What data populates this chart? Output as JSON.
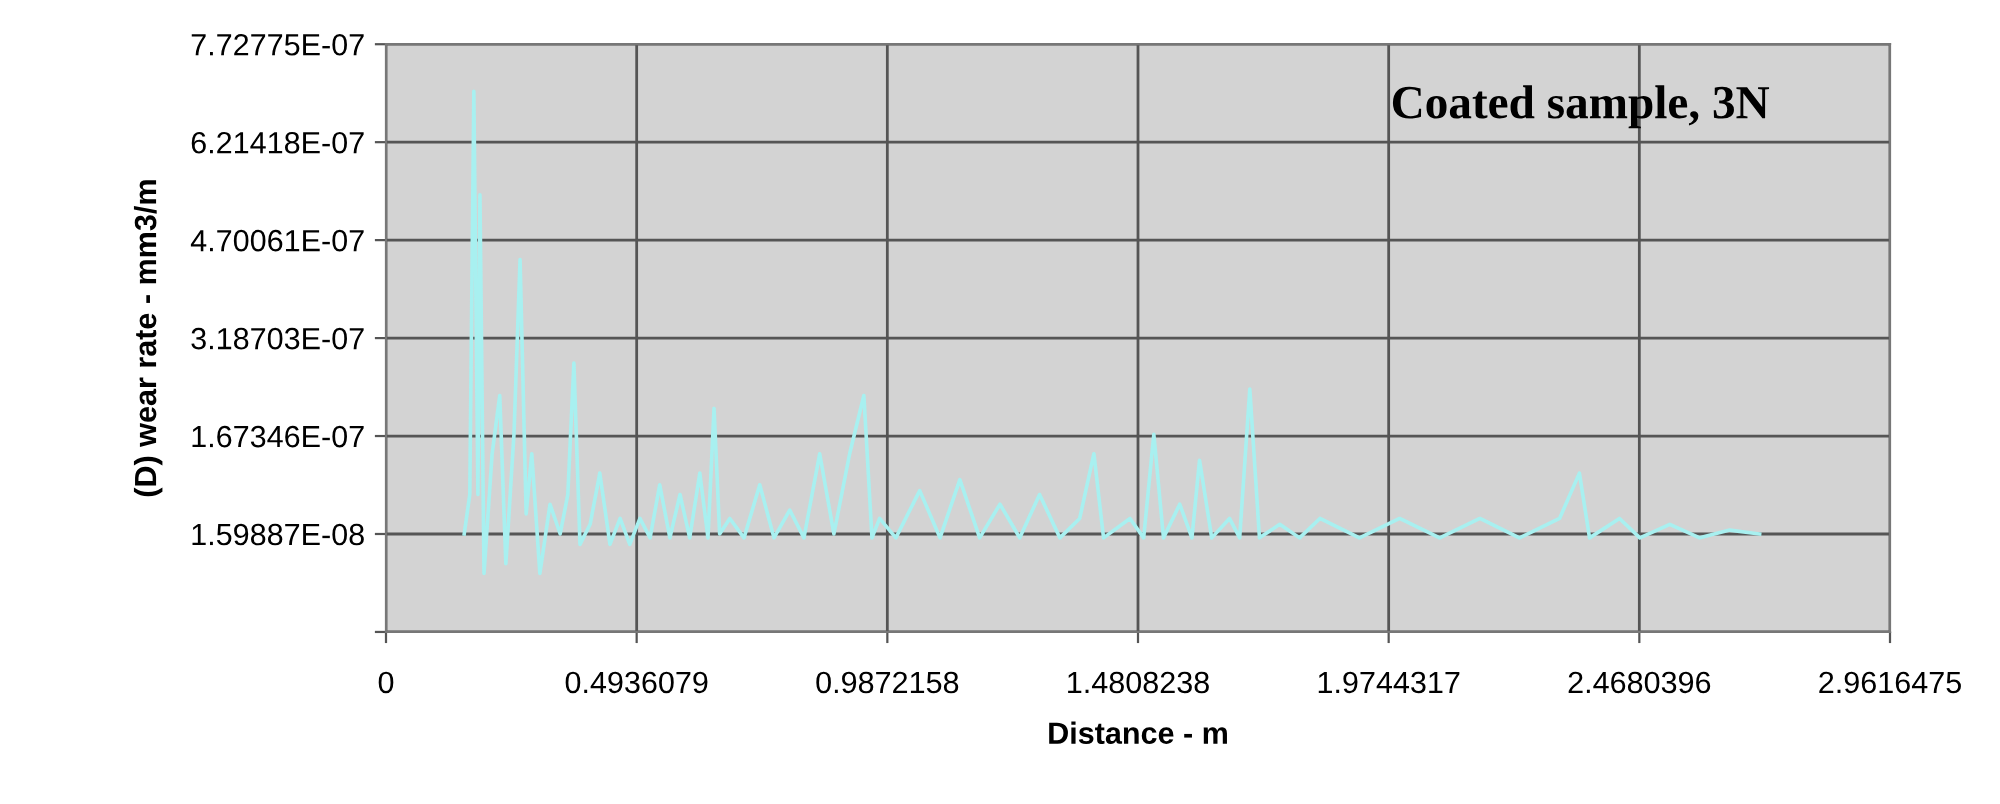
{
  "chart_data": {
    "type": "line",
    "title": "Coated sample, 3N",
    "xlabel": "Distance - m",
    "ylabel": "(D) wear rate - mm3/m",
    "xlim": [
      0,
      2.9616475
    ],
    "xticks": [
      0,
      0.4936079,
      0.9872158,
      1.4808238,
      1.9744317,
      2.4680396,
      2.9616475
    ],
    "ylim": [
      -1.35369e-07,
      7.72775e-07
    ],
    "yticks": [
      {
        "value": -1.35369e-07,
        "label": null
      },
      {
        "value": 1.59887e-08,
        "label": "1.59887E-08"
      },
      {
        "value": 1.67346e-07,
        "label": "1.67346E-07"
      },
      {
        "value": 3.18703e-07,
        "label": "3.18703E-07"
      },
      {
        "value": 4.70061e-07,
        "label": "4.70061E-07"
      },
      {
        "value": 6.21418e-07,
        "label": "6.21418E-07"
      },
      {
        "value": 7.72775e-07,
        "label": "7.72775E-07"
      }
    ],
    "grid": true,
    "legend": false,
    "marker": "none",
    "line_style": "solid",
    "series": [
      {
        "color": "#a8f0f0",
        "x": [
          0.154,
          0.165,
          0.173,
          0.181,
          0.185,
          0.193,
          0.209,
          0.224,
          0.236,
          0.252,
          0.264,
          0.276,
          0.287,
          0.303,
          0.323,
          0.343,
          0.358,
          0.37,
          0.382,
          0.402,
          0.421,
          0.441,
          0.461,
          0.48,
          0.5,
          0.52,
          0.539,
          0.559,
          0.579,
          0.598,
          0.618,
          0.634,
          0.646,
          0.657,
          0.677,
          0.705,
          0.736,
          0.764,
          0.795,
          0.823,
          0.854,
          0.882,
          0.913,
          0.941,
          0.957,
          0.972,
          1.004,
          1.051,
          1.091,
          1.13,
          1.169,
          1.209,
          1.248,
          1.287,
          1.327,
          1.366,
          1.394,
          1.413,
          1.465,
          1.492,
          1.512,
          1.531,
          1.563,
          1.587,
          1.602,
          1.626,
          1.661,
          1.681,
          1.701,
          1.72,
          1.76,
          1.799,
          1.839,
          1.917,
          1.996,
          2.075,
          2.154,
          2.232,
          2.311,
          2.35,
          2.37,
          2.429,
          2.469,
          2.528,
          2.587,
          2.646,
          2.705
        ],
        "values": [
          1.6e-08,
          7.7e-08,
          7e-07,
          7.7e-08,
          5.4e-07,
          -4.5e-08,
          1.4e-07,
          2.3e-07,
          -3e-08,
          1.7e-07,
          4.4e-07,
          4.7e-08,
          1.4e-07,
          -4.5e-08,
          6.2e-08,
          1.6e-08,
          7.7e-08,
          2.8e-07,
          0,
          3.1e-08,
          1.1e-07,
          0,
          4e-08,
          0,
          4e-08,
          1e-08,
          9.2e-08,
          1e-08,
          7.7e-08,
          1e-08,
          1.1e-07,
          1e-08,
          2.1e-07,
          1.6e-08,
          4e-08,
          1e-08,
          9.2e-08,
          1e-08,
          5.3e-08,
          1e-08,
          1.4e-07,
          1.6e-08,
          1.4e-07,
          2.3e-07,
          1e-08,
          4e-08,
          1e-08,
          8.3e-08,
          1e-08,
          1e-07,
          1e-08,
          6.2e-08,
          1e-08,
          7.7e-08,
          1e-08,
          4e-08,
          1.4e-07,
          1e-08,
          4e-08,
          1e-08,
          1.7e-07,
          1e-08,
          6.2e-08,
          1e-08,
          1.3e-07,
          1e-08,
          4e-08,
          1e-08,
          2.4e-07,
          1e-08,
          3.1e-08,
          1e-08,
          4e-08,
          1e-08,
          4e-08,
          1e-08,
          4e-08,
          1e-08,
          4e-08,
          1.1e-07,
          1e-08,
          4e-08,
          1e-08,
          3.1e-08,
          1e-08,
          2.2e-08,
          1.6e-08
        ]
      }
    ]
  }
}
